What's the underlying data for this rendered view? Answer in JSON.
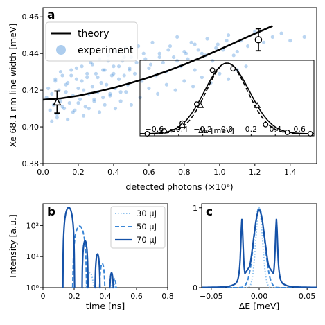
{
  "figure": {
    "panels": [
      "a",
      "b",
      "c"
    ],
    "colors": {
      "theory": "#000000",
      "experiment": "#4a90d9",
      "light": "#8ec1ee",
      "mid": "#3a86d6",
      "dark": "#1552a8"
    }
  },
  "chart_data": [
    {
      "id": "a",
      "type": "scatter",
      "xlabel": "detected photons (×10⁶)",
      "ylabel": "Xe 68.1 nm line width [meV]",
      "xlim": [
        0,
        1.55
      ],
      "ylim": [
        0.38,
        0.465
      ],
      "xticks": [
        "0.0",
        "0.2",
        "0.4",
        "0.6",
        "0.8",
        "1.0",
        "1.2",
        "1.4"
      ],
      "yticks": [
        "0.38",
        "0.40",
        "0.42",
        "0.44",
        "0.46"
      ],
      "legend": {
        "placement": "top-left",
        "entries": [
          "theory",
          "experiment"
        ]
      },
      "theory_curve": {
        "x": [
          0,
          0.1,
          0.2,
          0.3,
          0.4,
          0.5,
          0.6,
          0.7,
          0.8,
          0.9,
          1.0,
          1.1,
          1.2,
          1.3
        ],
        "y": [
          0.4148,
          0.4155,
          0.417,
          0.419,
          0.4213,
          0.424,
          0.427,
          0.4303,
          0.434,
          0.438,
          0.4422,
          0.4465,
          0.4508,
          0.455
        ]
      },
      "experiment_points": {
        "x": [
          0.02,
          0.03,
          0.04,
          0.05,
          0.06,
          0.07,
          0.08,
          0.09,
          0.1,
          0.11,
          0.12,
          0.13,
          0.14,
          0.15,
          0.16,
          0.17,
          0.18,
          0.19,
          0.2,
          0.21,
          0.22,
          0.23,
          0.24,
          0.25,
          0.26,
          0.27,
          0.28,
          0.29,
          0.3,
          0.31,
          0.32,
          0.33,
          0.34,
          0.35,
          0.36,
          0.37,
          0.38,
          0.39,
          0.4,
          0.41,
          0.42,
          0.43,
          0.44,
          0.45,
          0.46,
          0.47,
          0.48,
          0.49,
          0.5,
          0.52,
          0.54,
          0.56,
          0.58,
          0.6,
          0.62,
          0.64,
          0.66,
          0.68,
          0.7,
          0.72,
          0.74,
          0.76,
          0.78,
          0.8,
          0.82,
          0.84,
          0.86,
          0.88,
          0.9,
          0.93,
          0.96,
          0.99,
          1.02,
          1.05,
          1.08,
          1.12,
          1.16,
          1.2,
          1.25,
          1.3,
          1.35,
          1.4,
          1.48,
          0.05,
          0.08,
          0.11,
          0.14,
          0.17,
          0.2,
          0.23,
          0.26,
          0.29,
          0.32,
          0.35,
          0.38,
          0.41,
          0.44,
          0.47,
          0.5,
          0.55,
          0.6,
          0.65,
          0.7,
          0.75,
          0.8,
          0.85,
          0.9,
          0.95,
          1.0,
          1.05,
          1.1,
          1.15,
          0.07,
          0.1,
          0.13,
          0.16,
          0.19,
          0.22,
          0.25,
          0.28,
          0.31,
          0.34,
          0.37,
          0.4,
          0.43,
          0.46,
          0.49,
          0.53,
          0.57,
          0.61,
          0.66,
          0.71,
          0.76,
          0.81,
          0.86,
          0.92,
          0.98,
          1.04,
          1.1
        ],
        "y": [
          0.416,
          0.421,
          0.409,
          0.418,
          0.412,
          0.425,
          0.405,
          0.42,
          0.414,
          0.428,
          0.41,
          0.419,
          0.424,
          0.413,
          0.431,
          0.417,
          0.409,
          0.426,
          0.421,
          0.415,
          0.433,
          0.42,
          0.411,
          0.427,
          0.418,
          0.435,
          0.422,
          0.414,
          0.429,
          0.419,
          0.437,
          0.424,
          0.416,
          0.431,
          0.423,
          0.439,
          0.418,
          0.428,
          0.433,
          0.421,
          0.441,
          0.426,
          0.419,
          0.436,
          0.428,
          0.443,
          0.423,
          0.432,
          0.438,
          0.429,
          0.444,
          0.425,
          0.437,
          0.432,
          0.446,
          0.428,
          0.44,
          0.435,
          0.43,
          0.444,
          0.438,
          0.449,
          0.433,
          0.441,
          0.437,
          0.446,
          0.431,
          0.442,
          0.44,
          0.448,
          0.436,
          0.445,
          0.442,
          0.45,
          0.439,
          0.447,
          0.444,
          0.452,
          0.446,
          0.449,
          0.451,
          0.447,
          0.449,
          0.403,
          0.407,
          0.411,
          0.404,
          0.408,
          0.413,
          0.406,
          0.41,
          0.415,
          0.408,
          0.412,
          0.417,
          0.41,
          0.414,
          0.419,
          0.412,
          0.416,
          0.421,
          0.418,
          0.423,
          0.42,
          0.425,
          0.422,
          0.427,
          0.424,
          0.429,
          0.426,
          0.431,
          0.433,
          0.426,
          0.43,
          0.423,
          0.428,
          0.432,
          0.425,
          0.429,
          0.434,
          0.427,
          0.431,
          0.436,
          0.429,
          0.433,
          0.438,
          0.431,
          0.435,
          0.44,
          0.434,
          0.438,
          0.442,
          0.436,
          0.44,
          0.445,
          0.439,
          0.443,
          0.447,
          0.441
        ]
      },
      "error_bars": [
        {
          "x": 0.08,
          "y": 0.4135,
          "yerr": 0.006,
          "marker": "triangle"
        },
        {
          "x": 1.22,
          "y": 0.4475,
          "yerr": 0.006,
          "marker": "circle"
        }
      ],
      "inset": {
        "type": "line",
        "xlabel": "ΔE [meV]",
        "xlim": [
          -0.72,
          0.72
        ],
        "xticks": [
          "−0.6",
          "−0.4",
          "−0.2",
          "0.0",
          "0.2",
          "0.4",
          "0.6"
        ],
        "xtick_values": [
          -0.6,
          -0.4,
          -0.2,
          0.0,
          0.2,
          0.4,
          0.6
        ],
        "solid_sigma": 0.185,
        "dashed_sigma": 0.17,
        "circle_points": {
          "x": [
            -0.66,
            -0.52,
            -0.37,
            -0.25,
            -0.12,
            0.05,
            0.32,
            0.5,
            0.69
          ],
          "y": [
            0.0,
            0.04,
            0.15,
            0.42,
            0.9,
            0.92,
            0.13,
            0.02,
            0.0
          ]
        },
        "triangle_points": {
          "x": [
            -0.37,
            -0.22,
            0.25
          ],
          "y": [
            0.12,
            0.4,
            0.4
          ]
        }
      }
    },
    {
      "id": "b",
      "type": "line",
      "xlabel": "time [ns]",
      "ylabel": "Intensity [a.u.]",
      "xlim": [
        0,
        0.8
      ],
      "ylim_log": [
        1,
        500
      ],
      "yscale": "log",
      "xticks": [
        "0",
        "0.2",
        "0.4",
        "0.6",
        "0.8"
      ],
      "xtick_values": [
        0,
        0.2,
        0.4,
        0.6,
        0.8
      ],
      "yticks": [
        "10⁰",
        "10¹",
        "10²"
      ],
      "ytick_values": [
        1,
        10,
        100
      ],
      "legend": {
        "placement": "top-right"
      },
      "series": [
        {
          "name": "30 μJ",
          "style": "dotted",
          "peaks": [
            {
              "t": 0.3,
              "amp": 3,
              "w": 0.07
            },
            {
              "t": 0.45,
              "amp": 1.6,
              "w": 0.04
            }
          ]
        },
        {
          "name": "50 μJ",
          "style": "dashed",
          "peaks": [
            {
              "t": 0.235,
              "amp": 95,
              "w": 0.09
            },
            {
              "t": 0.38,
              "amp": 6,
              "w": 0.04
            },
            {
              "t": 0.46,
              "amp": 2,
              "w": 0.03
            }
          ]
        },
        {
          "name": "70 μJ",
          "style": "solid",
          "peaks": [
            {
              "t": 0.165,
              "amp": 380,
              "w": 0.075
            },
            {
              "t": 0.27,
              "amp": 32,
              "w": 0.04
            },
            {
              "t": 0.35,
              "amp": 12,
              "w": 0.035
            },
            {
              "t": 0.44,
              "amp": 3,
              "w": 0.03
            }
          ]
        }
      ]
    },
    {
      "id": "c",
      "type": "line",
      "xlabel": "ΔE [meV]",
      "xlim": [
        -0.06,
        0.06
      ],
      "ylim": [
        0,
        1.05
      ],
      "xticks": [
        "−0.05",
        "0.00",
        "0.05"
      ],
      "xtick_values": [
        -0.05,
        0,
        0.05
      ],
      "yticks": [
        "0",
        "1"
      ],
      "ytick_values": [
        0,
        1
      ],
      "series": [
        {
          "style": "dotted",
          "shape": "center",
          "sigma": 0.0035
        },
        {
          "style": "dashed",
          "shape": "center",
          "sigma": 0.0055
        },
        {
          "style": "solid",
          "shape": "triplet",
          "sigma": 0.006,
          "side": 0.018,
          "side_amp": 0.85,
          "side_w": 0.0015
        }
      ]
    }
  ]
}
